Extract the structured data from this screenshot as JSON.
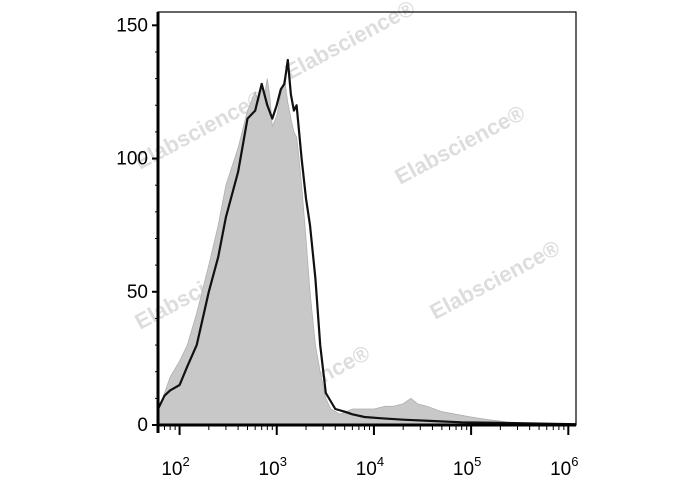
{
  "chart_data": {
    "type": "area",
    "title": "",
    "xlabel": "",
    "ylabel": "",
    "xscale": "log",
    "xlim": [
      60,
      1200000
    ],
    "ylim": [
      0,
      155
    ],
    "grid": false,
    "legend": "none",
    "x_ticks": [
      {
        "base": "10",
        "exp": "2",
        "value": 100
      },
      {
        "base": "10",
        "exp": "3",
        "value": 1000
      },
      {
        "base": "10",
        "exp": "4",
        "value": 10000
      },
      {
        "base": "10",
        "exp": "5",
        "value": 100000
      },
      {
        "base": "10",
        "exp": "6",
        "value": 1000000
      }
    ],
    "y_ticks": [
      {
        "label": "0",
        "value": 0
      },
      {
        "label": "50",
        "value": 50
      },
      {
        "label": "100",
        "value": 100
      },
      {
        "label": "150",
        "value": 150
      }
    ],
    "series": [
      {
        "style": "filled-gray",
        "color": "#c8c8c8",
        "points": [
          [
            60,
            5
          ],
          [
            70,
            12
          ],
          [
            80,
            18
          ],
          [
            100,
            24
          ],
          [
            120,
            30
          ],
          [
            150,
            42
          ],
          [
            200,
            60
          ],
          [
            250,
            75
          ],
          [
            300,
            90
          ],
          [
            400,
            104
          ],
          [
            500,
            118
          ],
          [
            600,
            125
          ],
          [
            650,
            121
          ],
          [
            700,
            127
          ],
          [
            750,
            124
          ],
          [
            800,
            130
          ],
          [
            850,
            123
          ],
          [
            900,
            112
          ],
          [
            1000,
            116
          ],
          [
            1100,
            124
          ],
          [
            1200,
            130
          ],
          [
            1300,
            121
          ],
          [
            1400,
            115
          ],
          [
            1500,
            110
          ],
          [
            1600,
            108
          ],
          [
            1700,
            100
          ],
          [
            1800,
            90
          ],
          [
            2000,
            70
          ],
          [
            2200,
            50
          ],
          [
            2500,
            30
          ],
          [
            2800,
            20
          ],
          [
            3200,
            10
          ],
          [
            3600,
            6
          ],
          [
            4500,
            4
          ],
          [
            6000,
            6
          ],
          [
            8000,
            6
          ],
          [
            10000,
            6
          ],
          [
            13000,
            7
          ],
          [
            16000,
            7
          ],
          [
            20000,
            8
          ],
          [
            24000,
            10
          ],
          [
            28000,
            8
          ],
          [
            35000,
            7
          ],
          [
            50000,
            5
          ],
          [
            70000,
            4
          ],
          [
            100000,
            3
          ],
          [
            150000,
            2
          ],
          [
            250000,
            1
          ],
          [
            500000,
            0.5
          ],
          [
            1200000,
            0.3
          ]
        ]
      },
      {
        "style": "line-black",
        "color": "#111111",
        "points": [
          [
            60,
            6
          ],
          [
            70,
            11
          ],
          [
            80,
            13
          ],
          [
            100,
            15
          ],
          [
            120,
            22
          ],
          [
            150,
            30
          ],
          [
            200,
            50
          ],
          [
            250,
            63
          ],
          [
            300,
            78
          ],
          [
            400,
            95
          ],
          [
            500,
            115
          ],
          [
            600,
            118
          ],
          [
            700,
            128
          ],
          [
            800,
            120
          ],
          [
            900,
            115
          ],
          [
            1000,
            120
          ],
          [
            1100,
            126
          ],
          [
            1200,
            128
          ],
          [
            1300,
            137
          ],
          [
            1400,
            124
          ],
          [
            1500,
            118
          ],
          [
            1600,
            120
          ],
          [
            1700,
            110
          ],
          [
            1800,
            100
          ],
          [
            2000,
            85
          ],
          [
            2200,
            75
          ],
          [
            2500,
            55
          ],
          [
            2800,
            30
          ],
          [
            3200,
            12
          ],
          [
            4000,
            6
          ],
          [
            5000,
            5
          ],
          [
            6000,
            4
          ],
          [
            8000,
            3
          ],
          [
            12000,
            2.5
          ],
          [
            20000,
            2
          ],
          [
            40000,
            1.5
          ],
          [
            80000,
            1
          ],
          [
            200000,
            0.8
          ],
          [
            600000,
            0.5
          ],
          [
            1200000,
            0.3
          ]
        ]
      }
    ]
  },
  "watermark": "Elabscience®"
}
